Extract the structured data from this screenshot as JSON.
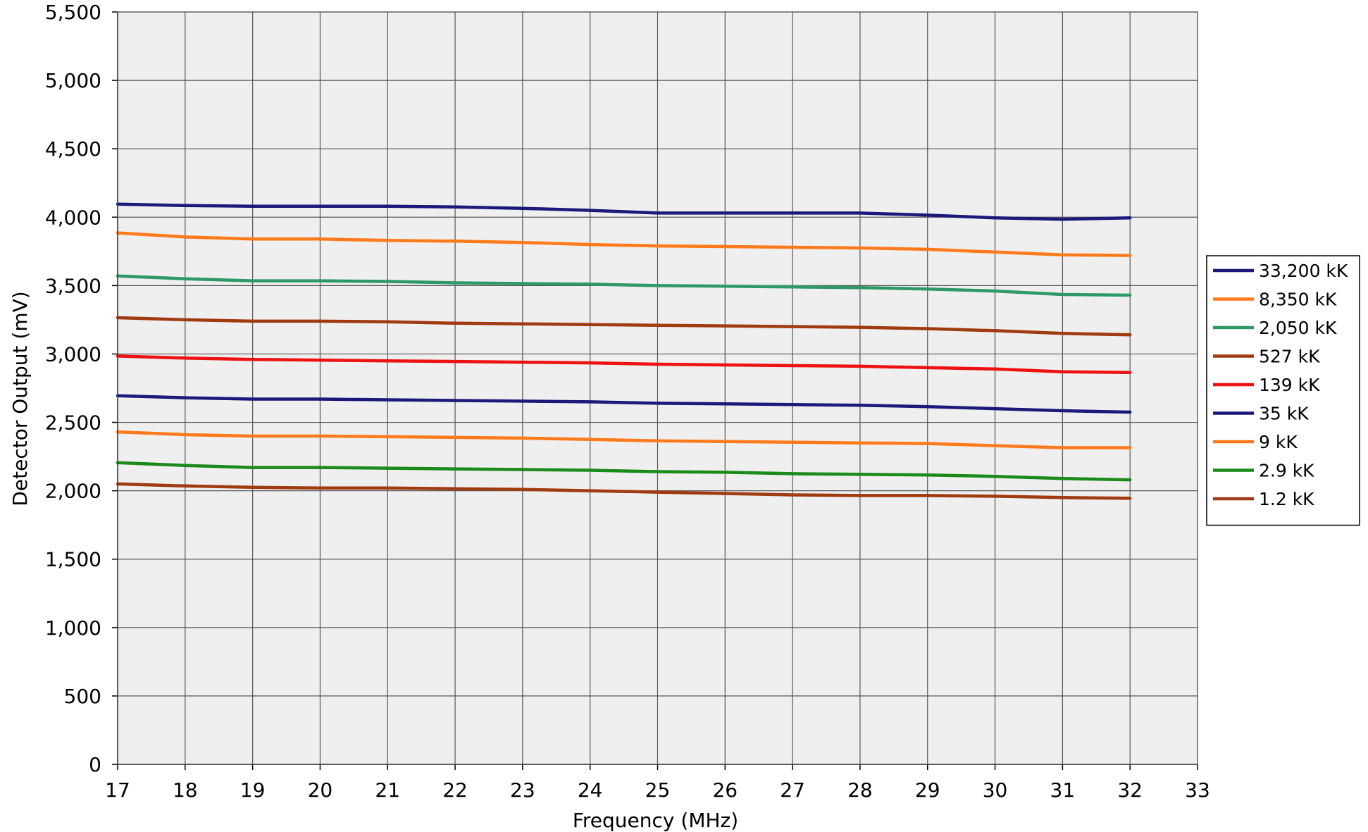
{
  "chart_data": {
    "type": "line",
    "title": "",
    "xlabel": "Frequency (MHz)",
    "ylabel": "Detector Output (mV)",
    "xlim": [
      17,
      33
    ],
    "ylim": [
      0,
      5500
    ],
    "x_ticks": [
      "17",
      "18",
      "19",
      "20",
      "21",
      "22",
      "23",
      "24",
      "25",
      "26",
      "27",
      "28",
      "29",
      "30",
      "31",
      "32",
      "33"
    ],
    "y_ticks": [
      "0",
      "500",
      "1,000",
      "1,500",
      "2,000",
      "2,500",
      "3,000",
      "3,500",
      "4,000",
      "4,500",
      "5,000",
      "5,500"
    ],
    "grid": true,
    "legend_position": "right",
    "plot_background": "#efefef",
    "x": [
      17,
      18,
      19,
      20,
      21,
      22,
      23,
      24,
      25,
      26,
      27,
      28,
      29,
      30,
      31,
      32
    ],
    "series": [
      {
        "name": "33,200 kK",
        "color": "#1a1a7a",
        "values": [
          4095,
          4085,
          4080,
          4080,
          4080,
          4075,
          4065,
          4050,
          4030,
          4030,
          4030,
          4030,
          4015,
          3995,
          3985,
          3995
        ]
      },
      {
        "name": "8,350 kK",
        "color": "#ff7a1a",
        "values": [
          3885,
          3855,
          3840,
          3840,
          3830,
          3825,
          3815,
          3800,
          3790,
          3785,
          3780,
          3775,
          3765,
          3745,
          3725,
          3720
        ]
      },
      {
        "name": "2,050 kK",
        "color": "#2e9966",
        "values": [
          3570,
          3550,
          3535,
          3535,
          3530,
          3520,
          3515,
          3510,
          3500,
          3495,
          3490,
          3485,
          3475,
          3460,
          3435,
          3430
        ]
      },
      {
        "name": "527 kK",
        "color": "#a03a10",
        "values": [
          3265,
          3250,
          3240,
          3240,
          3235,
          3225,
          3220,
          3215,
          3210,
          3205,
          3200,
          3195,
          3185,
          3170,
          3150,
          3140
        ]
      },
      {
        "name": "139 kK",
        "color": "#ee1111",
        "values": [
          2985,
          2970,
          2960,
          2955,
          2950,
          2945,
          2940,
          2935,
          2925,
          2920,
          2915,
          2910,
          2900,
          2890,
          2870,
          2865
        ]
      },
      {
        "name": "35 kK",
        "color": "#1a1a7a",
        "values": [
          2695,
          2680,
          2670,
          2670,
          2665,
          2660,
          2655,
          2650,
          2640,
          2635,
          2630,
          2625,
          2615,
          2600,
          2585,
          2575
        ]
      },
      {
        "name": "9 kK",
        "color": "#ff7a1a",
        "values": [
          2430,
          2410,
          2400,
          2400,
          2395,
          2390,
          2385,
          2375,
          2365,
          2360,
          2355,
          2350,
          2345,
          2330,
          2315,
          2315
        ]
      },
      {
        "name": "2.9 kK",
        "color": "#1a8a1a",
        "values": [
          2205,
          2185,
          2170,
          2170,
          2165,
          2160,
          2155,
          2150,
          2140,
          2135,
          2125,
          2120,
          2115,
          2105,
          2090,
          2080
        ]
      },
      {
        "name": "1.2 kK",
        "color": "#a03a10",
        "values": [
          2050,
          2035,
          2025,
          2020,
          2020,
          2015,
          2010,
          2000,
          1990,
          1980,
          1970,
          1965,
          1965,
          1960,
          1950,
          1945
        ]
      }
    ]
  }
}
